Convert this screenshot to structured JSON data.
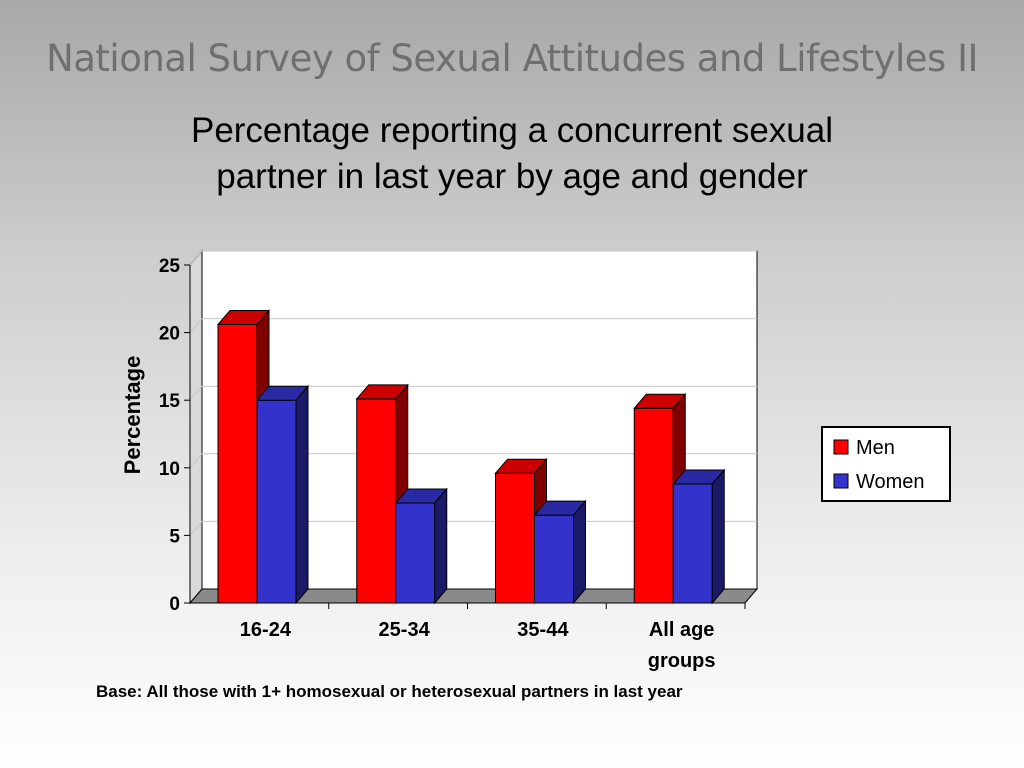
{
  "slide": {
    "title": "National Survey of Sexual Attitudes and Lifestyles II",
    "footnote": "Base:  All those with 1+ homosexual or heterosexual partners in last year"
  },
  "chart_data": {
    "type": "bar",
    "title_lines": [
      "Percentage reporting a concurrent sexual",
      "partner in last year by age and gender"
    ],
    "ylabel": "Percentage",
    "xlabel": "",
    "ylim": [
      0,
      25
    ],
    "yticks": [
      0,
      5,
      10,
      15,
      20,
      25
    ],
    "grid": true,
    "legend_position": "right",
    "categories": [
      [
        "16-24"
      ],
      [
        "25-34"
      ],
      [
        "35-44"
      ],
      [
        "All age",
        "groups"
      ]
    ],
    "series": [
      {
        "name": "Men",
        "color": "#ff0000",
        "values": [
          20.6,
          15.1,
          9.6,
          14.4
        ]
      },
      {
        "name": "Women",
        "color": "#3333cc",
        "values": [
          15.0,
          7.4,
          6.5,
          8.8
        ]
      }
    ]
  }
}
